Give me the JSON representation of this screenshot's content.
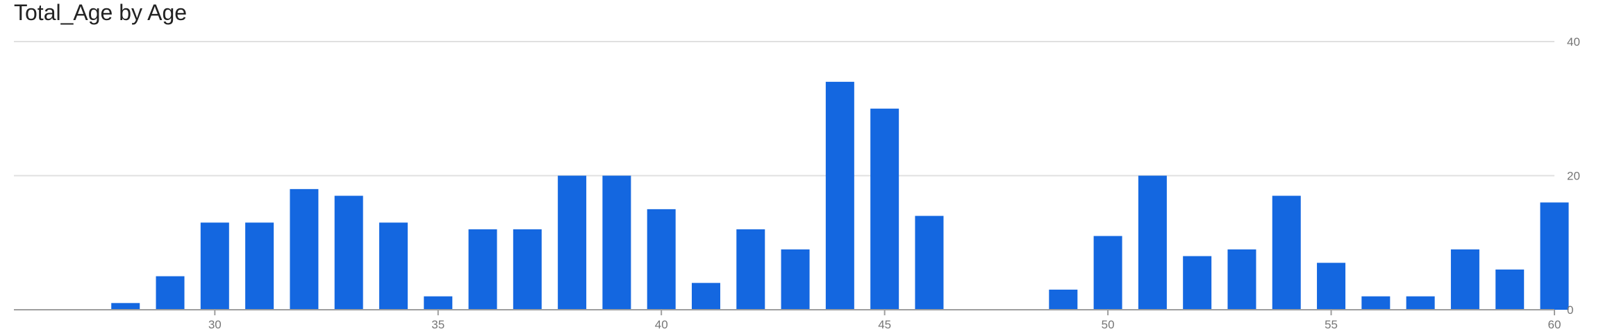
{
  "chart_data": {
    "type": "bar",
    "title": "Total_Age by Age",
    "xlabel": "",
    "ylabel": "",
    "x": [
      28,
      29,
      30,
      31,
      32,
      33,
      34,
      35,
      36,
      37,
      38,
      39,
      40,
      41,
      42,
      43,
      44,
      45,
      46,
      47,
      48,
      49,
      50,
      51,
      52,
      53,
      54,
      55,
      56,
      57,
      58,
      59,
      60
    ],
    "values": [
      1,
      5,
      13,
      13,
      18,
      17,
      13,
      2,
      12,
      12,
      20,
      20,
      15,
      4,
      12,
      9,
      34,
      30,
      14,
      0,
      0,
      3,
      11,
      20,
      8,
      9,
      17,
      7,
      2,
      2,
      9,
      6,
      16
    ],
    "xlim": [
      25.5,
      60
    ],
    "ylim": [
      0,
      40
    ],
    "x_ticks": [
      "30",
      "35",
      "40",
      "45",
      "50",
      "55",
      "60"
    ],
    "y_ticks": [
      "0",
      "20",
      "40"
    ],
    "y_axis_position": "right",
    "grid": true,
    "legend": "none",
    "bar_color": "#1467e0",
    "grid_color": "#e0e0e0",
    "axis_color": "#9e9e9e"
  }
}
